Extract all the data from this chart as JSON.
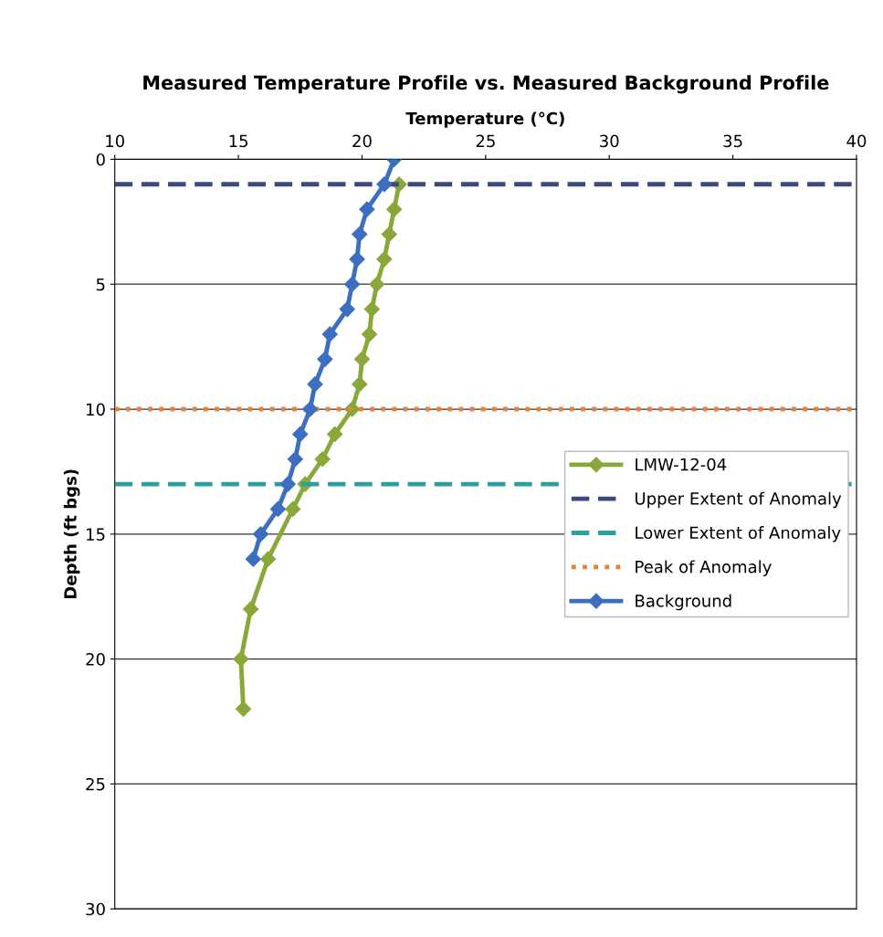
{
  "chart_data": {
    "type": "line",
    "title": "Measured Temperature Profile vs. Measured Background Profile",
    "xlabel": "Temperature (°C)",
    "ylabel": "Depth (ft bgs)",
    "xlim": [
      10,
      40
    ],
    "xticks": [
      10,
      15,
      20,
      25,
      30,
      35,
      40
    ],
    "ylim": [
      30,
      0
    ],
    "yticks": [
      0,
      5,
      10,
      15,
      20,
      25,
      30
    ],
    "grid": "y",
    "legend": "right",
    "marker": "diamond",
    "line_style": "solid",
    "series": [
      {
        "name": "LMW-12-04",
        "color": "#8aa83a",
        "x": [
          21.5,
          21.3,
          21.1,
          20.9,
          20.6,
          20.4,
          20.3,
          20.0,
          19.9,
          19.6,
          18.9,
          18.4,
          17.7,
          17.2,
          16.2,
          15.5,
          15.1,
          15.2
        ],
        "values": [
          1,
          2,
          3,
          4,
          5,
          6,
          7,
          8,
          9,
          10,
          11,
          12,
          13,
          14,
          16,
          18,
          20,
          22
        ]
      },
      {
        "name": "Upper Extent of Anomaly",
        "color": "#3b4a7a",
        "marker": "none",
        "line_style": "dashed",
        "x": [
          10,
          40
        ],
        "values": [
          1,
          1
        ]
      },
      {
        "name": "Lower Extent of Anomaly",
        "color": "#2aa0a0",
        "marker": "none",
        "line_style": "dashed",
        "x": [
          10,
          40
        ],
        "values": [
          13,
          13
        ]
      },
      {
        "name": "Peak of Anomaly",
        "color": "#e8823a",
        "marker": "none",
        "line_style": "dotted",
        "x": [
          10,
          40
        ],
        "values": [
          10,
          10
        ]
      },
      {
        "name": "Background",
        "color": "#3c6fc0",
        "x": [
          21.3,
          20.9,
          20.2,
          19.9,
          19.8,
          19.6,
          19.4,
          18.7,
          18.5,
          18.1,
          17.9,
          17.5,
          17.3,
          17.0,
          16.6,
          15.9,
          15.6
        ],
        "values": [
          0,
          1,
          2,
          3,
          4,
          5,
          6,
          7,
          8,
          9,
          10,
          11,
          12,
          13,
          14,
          15,
          16
        ]
      }
    ]
  }
}
